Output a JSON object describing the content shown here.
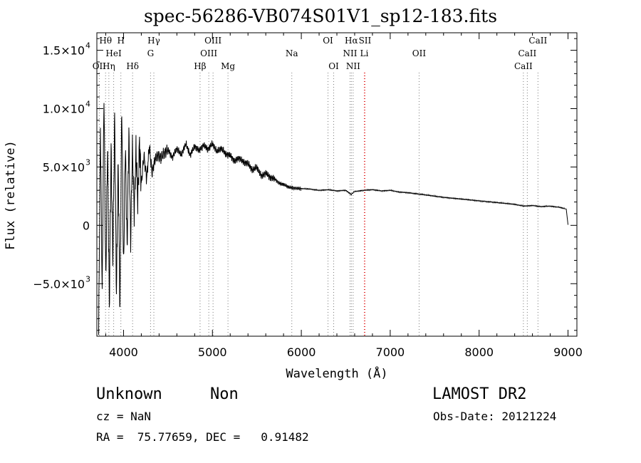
{
  "title": "spec-56286-VB074S01V1_sp12-183.fits",
  "chart_data": {
    "type": "line",
    "xlabel": "Wavelength (Å)",
    "ylabel": "Flux (relative)",
    "xlim": [
      3700,
      9100
    ],
    "ylim": [
      -9500,
      16500
    ],
    "x_ticks": [
      4000,
      5000,
      6000,
      7000,
      8000,
      9000
    ],
    "y_ticks": [
      {
        "value": 15000,
        "label": "1.5×10",
        "exp": "4"
      },
      {
        "value": 10000,
        "label": "1.0×10",
        "exp": "4"
      },
      {
        "value": 5000,
        "label": "5.0×10",
        "exp": "3"
      },
      {
        "value": 0,
        "label": "0",
        "exp": ""
      },
      {
        "value": -5000,
        "label": "−5.0×10",
        "exp": "3"
      }
    ],
    "grid": false,
    "series": [
      {
        "x": [
          3720,
          3740,
          3760,
          3780,
          3800,
          3820,
          3840,
          3860,
          3880,
          3900,
          3920,
          3940,
          3960,
          3980,
          4000,
          4020,
          4040,
          4060,
          4080,
          4100,
          4120,
          4140,
          4160,
          4180,
          4200,
          4230,
          4260,
          4290,
          4320,
          4350,
          4380,
          4420,
          4460,
          4500,
          4550,
          4600,
          4650,
          4700,
          4750,
          4800,
          4850,
          4900,
          4950,
          5000,
          5050,
          5100,
          5150,
          5200,
          5250,
          5300,
          5350,
          5400,
          5450,
          5500,
          5550,
          5600,
          5650,
          5700,
          5750,
          5800,
          5850,
          5900,
          6000,
          6100,
          6200,
          6300,
          6400,
          6500,
          6560,
          6600,
          6700,
          6800,
          6900,
          7000,
          7100,
          7200,
          7400,
          7600,
          7800,
          8000,
          8200,
          8400,
          8500,
          8600,
          8700,
          8800,
          8900,
          8980,
          9000
        ],
        "y": [
          -9200,
          8500,
          -6000,
          11500,
          -5000,
          7000,
          -7000,
          6500,
          -3000,
          9500,
          -6000,
          5500,
          -7500,
          10500,
          -4000,
          7000,
          -2000,
          8000,
          -1500,
          6800,
          1000,
          6500,
          2000,
          7200,
          3500,
          6000,
          4000,
          6800,
          4500,
          5500,
          6000,
          5800,
          6200,
          6500,
          5800,
          6600,
          6000,
          7000,
          6000,
          6800,
          6400,
          6900,
          6500,
          7000,
          6300,
          6600,
          6100,
          6000,
          5500,
          5800,
          5400,
          5300,
          4700,
          5000,
          4200,
          4500,
          4100,
          4000,
          3600,
          3500,
          3300,
          3200,
          3150,
          3100,
          3000,
          3050,
          2950,
          3000,
          2650,
          2900,
          3000,
          3050,
          2950,
          3000,
          2850,
          2800,
          2600,
          2400,
          2250,
          2100,
          1950,
          1800,
          1650,
          1700,
          1600,
          1650,
          1550,
          1400,
          50
        ]
      }
    ],
    "lines": [
      {
        "label": "Hθ",
        "x": 3798,
        "row": 0,
        "color": "#7a7a7a"
      },
      {
        "label": "H",
        "x": 3970,
        "row": 0,
        "color": "#7a7a7a"
      },
      {
        "label": "Hγ",
        "x": 4341,
        "row": 0,
        "color": "#7a7a7a"
      },
      {
        "label": "OIII",
        "x": 5007,
        "row": 0,
        "color": "#7a7a7a"
      },
      {
        "label": "OI",
        "x": 6300,
        "row": 0,
        "color": "#7a7a7a"
      },
      {
        "label": "Hα",
        "x": 6563,
        "row": 0,
        "color": "#7a7a7a"
      },
      {
        "label": "SII",
        "x": 6716,
        "row": 0,
        "color": "#e02020"
      },
      {
        "label": "CaII",
        "x": 8662,
        "row": 0,
        "color": "#7a7a7a"
      },
      {
        "label": "HeI",
        "x": 3889,
        "row": 1,
        "color": "#7a7a7a"
      },
      {
        "label": "G",
        "x": 4304,
        "row": 1,
        "color": "#7a7a7a"
      },
      {
        "label": "OIII",
        "x": 4959,
        "row": 1,
        "color": "#7a7a7a"
      },
      {
        "label": "Na",
        "x": 5893,
        "row": 1,
        "color": "#7a7a7a"
      },
      {
        "label": "NII",
        "x": 6548,
        "row": 1,
        "color": "#7a7a7a"
      },
      {
        "label": "Li",
        "x": 6708,
        "row": 1,
        "color": "#e02020"
      },
      {
        "label": "OII",
        "x": 7325,
        "row": 1,
        "color": "#7a7a7a"
      },
      {
        "label": "CaII",
        "x": 8542,
        "row": 1,
        "color": "#7a7a7a"
      },
      {
        "label": "OII",
        "x": 3727,
        "row": 2,
        "color": "#7a7a7a"
      },
      {
        "label": "Hη",
        "x": 3835,
        "row": 2,
        "color": "#7a7a7a"
      },
      {
        "label": "Hδ",
        "x": 4102,
        "row": 2,
        "color": "#7a7a7a"
      },
      {
        "label": "Hβ",
        "x": 4861,
        "row": 2,
        "color": "#7a7a7a"
      },
      {
        "label": "Mg",
        "x": 5175,
        "row": 2,
        "color": "#7a7a7a"
      },
      {
        "label": "OI",
        "x": 6364,
        "row": 2,
        "color": "#7a7a7a"
      },
      {
        "label": "NII",
        "x": 6583,
        "row": 2,
        "color": "#7a7a7a"
      },
      {
        "label": "CaII",
        "x": 8498,
        "row": 2,
        "color": "#7a7a7a"
      }
    ]
  },
  "info": {
    "class": "Unknown",
    "subclass": "Non",
    "survey": "LAMOST DR2",
    "cz": "cz = NaN",
    "obs_date": "Obs-Date: 20121224",
    "radec": "RA =  75.77659, DEC =   0.91482"
  }
}
